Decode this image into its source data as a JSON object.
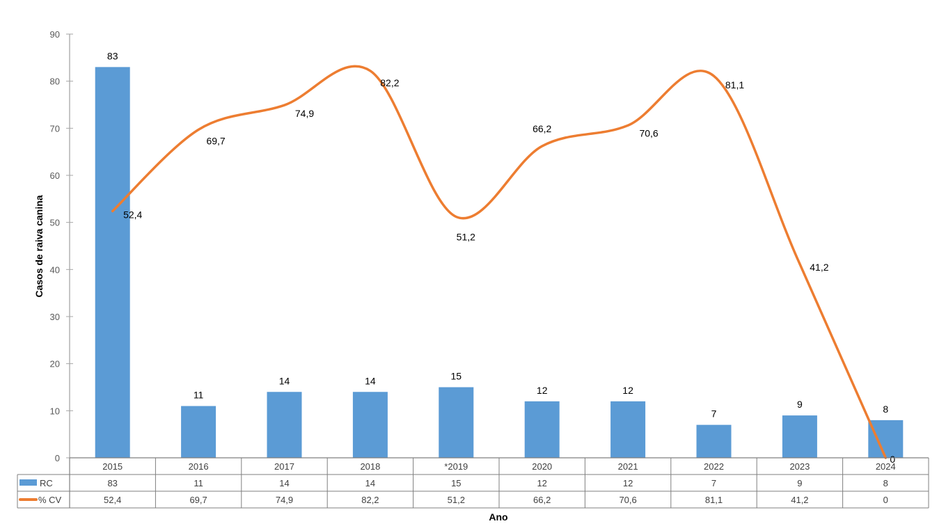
{
  "chart_data": {
    "type": "bar+line",
    "title": "",
    "xlabel": "Ano",
    "ylabel": "Casos de raiva canina",
    "ylim": [
      0,
      90
    ],
    "yticks": [
      0,
      10,
      20,
      30,
      40,
      50,
      60,
      70,
      80,
      90
    ],
    "grid": false,
    "legend_position": "data-table",
    "categories": [
      "2015",
      "2016",
      "2017",
      "2018",
      "*2019",
      "2020",
      "2021",
      "2022",
      "2023",
      "2024"
    ],
    "series": [
      {
        "name": "RC",
        "type": "bar",
        "color": "#5B9BD5",
        "values": [
          83,
          11,
          14,
          14,
          15,
          12,
          12,
          7,
          9,
          8
        ],
        "labels": [
          "83",
          "11",
          "14",
          "14",
          "15",
          "12",
          "12",
          "7",
          "9",
          "8"
        ]
      },
      {
        "name": "% CV",
        "type": "line",
        "smooth": true,
        "color": "#ED7D31",
        "values": [
          52.4,
          69.7,
          74.9,
          82.2,
          51.2,
          66.2,
          70.6,
          81.1,
          41.2,
          0
        ],
        "labels": [
          "52,4",
          "69,7",
          "74,9",
          "82,2",
          "51,2",
          "66,2",
          "70,6",
          "81,1",
          "41,2",
          "0"
        ]
      }
    ]
  },
  "axis_color": "#A6A6A6",
  "table_border_color": "#7F7F7F"
}
